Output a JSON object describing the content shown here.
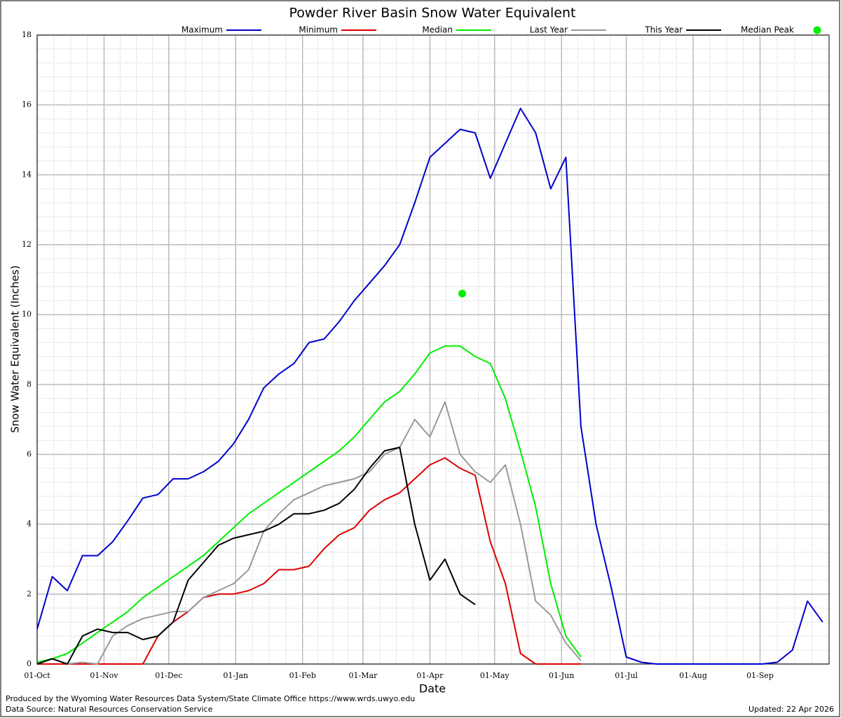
{
  "chart_data": {
    "type": "line",
    "title": "Powder River Basin Snow Water Equivalent",
    "xlabel": "Date",
    "ylabel": "Snow Water Equivalent (Inches)",
    "xlim": [
      0,
      367
    ],
    "ylim": [
      0,
      18
    ],
    "yticks": [
      0,
      2,
      4,
      6,
      8,
      10,
      12,
      14,
      16,
      18
    ],
    "xticks": [
      {
        "value": 0,
        "label": "01-Oct"
      },
      {
        "value": 31,
        "label": "01-Nov"
      },
      {
        "value": 61,
        "label": "01-Dec"
      },
      {
        "value": 92,
        "label": "01-Jan"
      },
      {
        "value": 123,
        "label": "01-Feb"
      },
      {
        "value": 151,
        "label": "01-Mar"
      },
      {
        "value": 182,
        "label": "01-Apr"
      },
      {
        "value": 212,
        "label": "01-May"
      },
      {
        "value": 243,
        "label": "01-Jun"
      },
      {
        "value": 273,
        "label": "01-Jul"
      },
      {
        "value": 304,
        "label": "01-Aug"
      },
      {
        "value": 335,
        "label": "01-Sep"
      }
    ],
    "grid": true,
    "x": [
      0,
      7,
      14,
      21,
      28,
      35,
      42,
      49,
      56,
      63,
      70,
      77,
      84,
      91,
      98,
      105,
      112,
      119,
      126,
      133,
      140,
      147,
      154,
      161,
      168,
      175,
      182,
      189,
      196,
      203,
      210,
      217,
      224,
      231,
      238,
      245,
      252,
      259,
      266,
      273,
      280,
      287,
      294,
      301,
      308,
      315,
      322,
      329,
      336,
      343,
      350,
      357,
      364
    ],
    "series": [
      {
        "name": "Maximum",
        "color": "#0000cc",
        "values": [
          1.0,
          2.5,
          2.1,
          3.1,
          3.1,
          3.5,
          4.1,
          4.75,
          4.85,
          5.3,
          5.3,
          5.5,
          5.8,
          6.3,
          7.0,
          7.9,
          8.3,
          8.6,
          9.2,
          9.3,
          9.8,
          10.4,
          10.9,
          11.4,
          12.0,
          13.2,
          14.5,
          14.9,
          15.3,
          15.2,
          13.9,
          14.9,
          15.9,
          15.2,
          13.6,
          14.5,
          6.8,
          4.0,
          2.2,
          0.2,
          0.05,
          0,
          0,
          0,
          0,
          0,
          0,
          0,
          0,
          0.05,
          0.4,
          1.8,
          1.2
        ]
      },
      {
        "name": "Minimum",
        "color": "#dd0000",
        "values": [
          0,
          0,
          0,
          0,
          0,
          0,
          0,
          0,
          0.8,
          1.2,
          1.5,
          1.9,
          2.0,
          2.0,
          2.1,
          2.3,
          2.7,
          2.7,
          2.8,
          3.3,
          3.7,
          3.9,
          4.4,
          4.7,
          4.9,
          5.3,
          5.7,
          5.9,
          5.6,
          5.4,
          3.5,
          2.3,
          0.3,
          0,
          0,
          0,
          0,
          null,
          null,
          null,
          null,
          null,
          null,
          null,
          null,
          null,
          null,
          null,
          null,
          null,
          null,
          null,
          null
        ]
      },
      {
        "name": "Median",
        "color": "#00ee00",
        "values": [
          0.05,
          0.15,
          0.3,
          0.6,
          0.9,
          1.2,
          1.5,
          1.9,
          2.2,
          2.5,
          2.8,
          3.1,
          3.5,
          3.9,
          4.3,
          4.6,
          4.9,
          5.2,
          5.5,
          5.8,
          6.1,
          6.5,
          7.0,
          7.5,
          7.8,
          8.3,
          8.9,
          9.1,
          9.1,
          8.8,
          8.6,
          7.6,
          6.1,
          4.5,
          2.3,
          0.8,
          0.2,
          null,
          null,
          null,
          null,
          null,
          null,
          null,
          null,
          null,
          null,
          null,
          null,
          null,
          null,
          null,
          null
        ]
      },
      {
        "name": "Last Year",
        "color": "#999999",
        "values": [
          null,
          null,
          0,
          0.05,
          0,
          0.8,
          1.1,
          1.3,
          1.4,
          1.5,
          1.5,
          1.9,
          2.1,
          2.3,
          2.7,
          3.8,
          4.3,
          4.7,
          4.9,
          5.1,
          5.2,
          5.3,
          5.5,
          6.0,
          6.2,
          7.0,
          6.5,
          7.5,
          6.0,
          5.5,
          5.2,
          5.7,
          4.0,
          1.8,
          1.4,
          0.6,
          0.1,
          null,
          null,
          null,
          null,
          null,
          null,
          null,
          null,
          null,
          null,
          null,
          null,
          null,
          null,
          null,
          null
        ]
      },
      {
        "name": "This Year",
        "color": "#000000",
        "values": [
          0,
          0.15,
          0,
          0.8,
          1.0,
          0.9,
          0.9,
          0.7,
          0.8,
          1.2,
          2.4,
          2.9,
          3.4,
          3.6,
          3.7,
          3.8,
          4.0,
          4.3,
          4.3,
          4.4,
          4.6,
          5.0,
          5.6,
          6.1,
          6.2,
          4.0,
          2.4,
          3.0,
          2.0,
          1.7,
          null,
          null,
          null,
          null,
          null,
          null,
          null,
          null,
          null,
          null,
          null,
          null,
          null,
          null,
          null,
          null,
          null,
          null,
          null,
          null,
          null,
          null,
          null
        ]
      }
    ],
    "peak": {
      "name": "Median Peak",
      "color": "#00ee00",
      "x": 197,
      "value": 10.6
    },
    "footer": {
      "produced": "Produced by the Wyoming Water Resources Data System/State Climate Office https://www.wrds.uwyo.edu",
      "source": "Data Source: Natural Resources Conservation Service",
      "updated": "Updated: 22 Apr 2026"
    }
  }
}
